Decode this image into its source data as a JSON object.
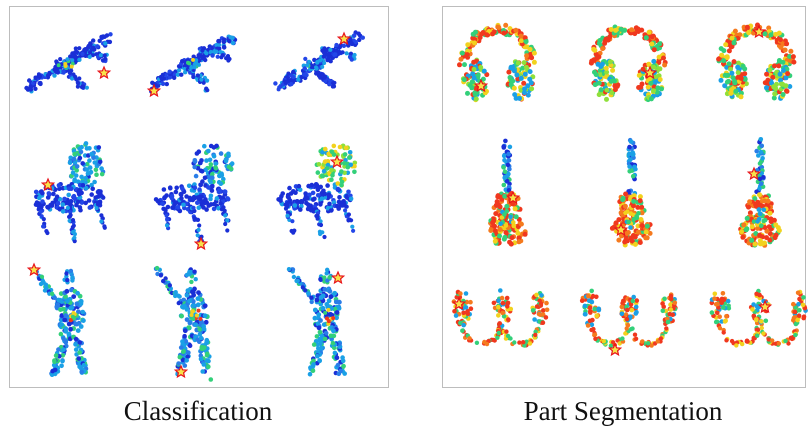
{
  "captions": {
    "classification": "Classification",
    "part_segmentation": "Part Segmentation"
  },
  "colors": {
    "cold": "#1a2fd6",
    "cool": "#1aa0e6",
    "mid": "#33d07a",
    "warm": "#f2d21e",
    "hot": "#f0381e",
    "star_fill": "#f7e24a",
    "star_stroke": "#e8121a",
    "border": "#bdbdbd"
  },
  "classification_rows": [
    {
      "object": "airplane",
      "instances": 3
    },
    {
      "object": "chair",
      "instances": 3
    },
    {
      "object": "person",
      "instances": 3
    }
  ],
  "segmentation_rows": [
    {
      "object": "headphones",
      "instances": 3
    },
    {
      "object": "guitar",
      "instances": 3
    },
    {
      "object": "chain",
      "instances": 3
    }
  ]
}
